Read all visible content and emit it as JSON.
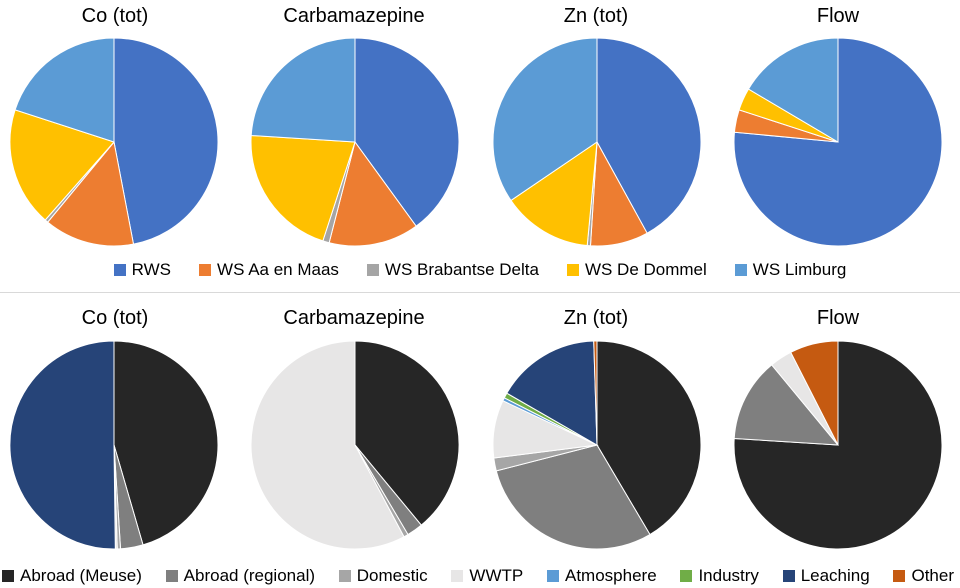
{
  "chart_data": [
    {
      "type": "pie",
      "group": "water-authority",
      "title": "Co (tot)",
      "categories": [
        "RWS",
        "WS Aa en Maas",
        "WS Brabantse Delta",
        "WS De Dommel",
        "WS Limburg"
      ],
      "values": [
        47,
        14,
        0.5,
        18.5,
        20
      ]
    },
    {
      "type": "pie",
      "group": "water-authority",
      "title": "Carbamazepine",
      "categories": [
        "RWS",
        "WS Aa en Maas",
        "WS Brabantse Delta",
        "WS De Dommel",
        "WS Limburg"
      ],
      "values": [
        40,
        14,
        1,
        21,
        24
      ]
    },
    {
      "type": "pie",
      "group": "water-authority",
      "title": "Zn (tot)",
      "categories": [
        "RWS",
        "WS Aa en Maas",
        "WS Brabantse Delta",
        "WS De Dommel",
        "WS Limburg"
      ],
      "values": [
        42,
        9,
        0.5,
        14,
        34.5
      ]
    },
    {
      "type": "pie",
      "group": "water-authority",
      "title": "Flow",
      "categories": [
        "RWS",
        "WS Aa en Maas",
        "WS Brabantse Delta",
        "WS De Dommel",
        "WS Limburg"
      ],
      "values": [
        76.5,
        3.5,
        0,
        3.5,
        16.5
      ]
    },
    {
      "type": "pie",
      "group": "source",
      "title": "Co (tot)",
      "categories": [
        "Abroad (Meuse)",
        "Abroad (regional)",
        "Domestic",
        "WWTP",
        "Atmosphere",
        "Industry",
        "Leaching",
        "Other"
      ],
      "values": [
        45.5,
        3.5,
        0.5,
        0.3,
        0,
        0,
        50.2,
        0
      ]
    },
    {
      "type": "pie",
      "group": "source",
      "title": "Carbamazepine",
      "categories": [
        "Abroad (Meuse)",
        "Abroad (regional)",
        "Domestic",
        "WWTP",
        "Atmosphere",
        "Industry",
        "Leaching",
        "Other"
      ],
      "values": [
        39,
        2.5,
        0.7,
        57.8,
        0,
        0,
        0,
        0
      ]
    },
    {
      "type": "pie",
      "group": "source",
      "title": "Zn (tot)",
      "categories": [
        "Abroad (Meuse)",
        "Abroad (regional)",
        "Domestic",
        "WWTP",
        "Atmosphere",
        "Industry",
        "Leaching",
        "Other"
      ],
      "values": [
        41.5,
        29.5,
        2,
        9,
        0.5,
        0.8,
        16.2,
        0.5
      ]
    },
    {
      "type": "pie",
      "group": "source",
      "title": "Flow",
      "categories": [
        "Abroad (Meuse)",
        "Abroad (regional)",
        "Domestic",
        "WWTP",
        "Atmosphere",
        "Industry",
        "Leaching",
        "Other"
      ],
      "values": [
        76,
        13,
        0,
        3.5,
        0,
        0,
        0,
        7.5
      ]
    }
  ],
  "legend_top": [
    {
      "label": "RWS",
      "color": "#4472C4"
    },
    {
      "label": "WS Aa en Maas",
      "color": "#ED7D31"
    },
    {
      "label": "WS Brabantse Delta",
      "color": "#A5A5A5"
    },
    {
      "label": "WS De Dommel",
      "color": "#FFC000"
    },
    {
      "label": "WS Limburg",
      "color": "#5B9BD5"
    }
  ],
  "legend_bottom": [
    {
      "label": "Abroad (Meuse)",
      "color": "#262626"
    },
    {
      "label": "Abroad (regional)",
      "color": "#7F7F7F"
    },
    {
      "label": "Domestic",
      "color": "#A6A6A6"
    },
    {
      "label": "WWTP",
      "color": "#E7E6E6"
    },
    {
      "label": "Atmosphere",
      "color": "#5B9BD5"
    },
    {
      "label": "Industry",
      "color": "#70AD47"
    },
    {
      "label": "Leaching",
      "color": "#264478"
    },
    {
      "label": "Other",
      "color": "#C55A11"
    }
  ]
}
